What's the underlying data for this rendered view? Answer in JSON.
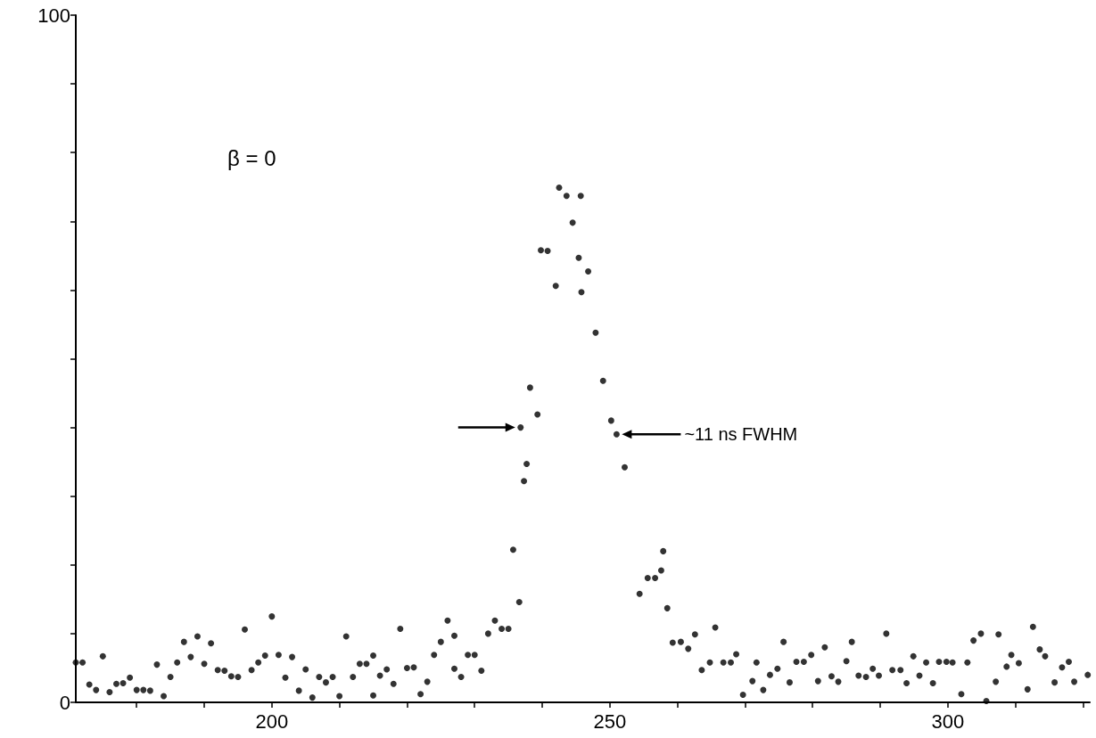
{
  "chart_data": {
    "type": "scatter",
    "color": "#000000",
    "marker": "circle",
    "xlim": [
      171,
      321
    ],
    "xticks": [
      {
        "value": 180,
        "label": null
      },
      {
        "value": 190,
        "label": null
      },
      200,
      {
        "value": 210,
        "label": null
      },
      {
        "value": 220,
        "label": null
      },
      {
        "value": 230,
        "label": null
      },
      {
        "value": 240,
        "label": null
      },
      250,
      {
        "value": 260,
        "label": null
      },
      {
        "value": 270,
        "label": null
      },
      {
        "value": 280,
        "label": null
      },
      {
        "value": 290,
        "label": null
      },
      300,
      {
        "value": 310,
        "label": null
      },
      {
        "value": 320,
        "label": null
      }
    ],
    "ylim": [
      0,
      100
    ],
    "yticks": [
      0,
      {
        "value": 10,
        "label": null
      },
      {
        "value": 20,
        "label": null
      },
      {
        "value": 30,
        "label": null
      },
      {
        "value": 40,
        "label": null
      },
      {
        "value": 50,
        "label": null
      },
      {
        "value": 60,
        "label": null
      },
      {
        "value": 70,
        "label": null
      },
      {
        "value": 80,
        "label": null
      },
      {
        "value": 90,
        "label": null
      },
      100
    ],
    "annotations": [
      "β = 0",
      "~11 ns FWHM"
    ],
    "x": [
      171,
      172,
      173,
      174,
      175,
      176,
      177,
      178,
      179,
      180,
      181,
      182,
      183,
      184,
      185,
      186,
      187,
      188,
      189,
      190,
      191,
      192,
      193,
      194,
      195,
      196,
      197,
      198,
      199,
      200,
      201,
      202,
      203,
      204,
      205,
      206,
      207,
      208,
      209,
      210,
      211,
      212,
      213,
      214,
      215,
      215,
      216,
      217,
      218,
      219,
      220,
      221,
      222,
      223,
      224,
      225,
      226,
      227,
      227,
      228,
      229,
      230,
      231,
      232,
      233,
      234,
      235,
      235.7,
      236.6,
      236.8,
      237.3,
      237.7,
      238.2,
      239.3,
      239.8,
      240.8,
      242.0,
      242.5,
      243.6,
      244.5,
      245.4,
      245.7,
      245.8,
      246.8,
      247.9,
      249.0,
      250.2,
      251.0,
      252.2,
      254.4,
      255.6,
      256.7,
      257.6,
      257.9,
      258.5,
      259.3,
      260.5,
      261.6,
      262.6,
      263.6,
      264.8,
      265.6,
      266.8,
      267.9,
      268.7,
      269.7,
      271.1,
      271.7,
      272.7,
      273.7,
      274.8,
      275.7,
      276.6,
      277.6,
      278.7,
      279.8,
      280.8,
      281.8,
      282.8,
      283.8,
      285.0,
      285.8,
      286.8,
      287.9,
      288.9,
      289.8,
      290.9,
      291.8,
      293.0,
      293.9,
      294.9,
      295.8,
      296.8,
      297.8,
      298.7,
      299.8,
      300.7,
      302.0,
      302.9,
      303.8,
      304.9,
      305.7,
      307.1,
      307.5,
      308.7,
      309.4,
      310.5,
      311.8,
      312.6,
      313.6,
      314.4,
      315.8,
      316.9,
      317.9,
      318.7,
      320.7
    ],
    "values": [
      5.8,
      5.8,
      2.6,
      1.8,
      6.7,
      1.5,
      2.7,
      2.8,
      3.6,
      1.8,
      1.8,
      1.7,
      5.5,
      0.9,
      3.7,
      5.8,
      8.8,
      6.6,
      9.6,
      5.6,
      8.6,
      4.7,
      4.6,
      3.8,
      3.7,
      10.6,
      4.7,
      5.8,
      6.8,
      12.5,
      6.9,
      3.6,
      6.6,
      1.7,
      4.8,
      0.7,
      3.7,
      2.9,
      3.7,
      0.9,
      9.6,
      3.7,
      5.6,
      5.6,
      6.8,
      1.0,
      3.9,
      4.8,
      2.7,
      10.7,
      5.0,
      5.1,
      1.2,
      3.0,
      6.9,
      8.8,
      11.9,
      9.7,
      4.9,
      3.7,
      6.9,
      6.9,
      4.6,
      10.0,
      11.9,
      10.7,
      10.7,
      22.2,
      14.6,
      40.0,
      32.2,
      34.7,
      45.8,
      41.9,
      65.8,
      65.7,
      60.6,
      74.9,
      73.7,
      69.8,
      64.7,
      73.7,
      59.7,
      62.7,
      53.8,
      46.8,
      41.0,
      39.0,
      34.2,
      15.8,
      18.1,
      18.1,
      19.2,
      22.0,
      13.7,
      8.7,
      8.8,
      7.8,
      9.9,
      4.7,
      5.8,
      10.9,
      5.8,
      5.8,
      7.0,
      1.1,
      3.1,
      5.8,
      1.8,
      4.0,
      4.9,
      8.8,
      2.9,
      5.9,
      5.9,
      6.9,
      3.1,
      8.0,
      3.8,
      3.0,
      6.0,
      8.8,
      3.9,
      3.7,
      4.9,
      3.9,
      10.0,
      4.7,
      4.7,
      2.8,
      6.7,
      3.9,
      5.8,
      2.8,
      5.9,
      5.9,
      5.8,
      1.2,
      5.8,
      9.0,
      10.0,
      0.2,
      3.0,
      9.9,
      5.2,
      6.9,
      5.7,
      1.9,
      11.0,
      7.7,
      6.7,
      2.9,
      5.1,
      5.9,
      3.0,
      4.0
    ]
  }
}
